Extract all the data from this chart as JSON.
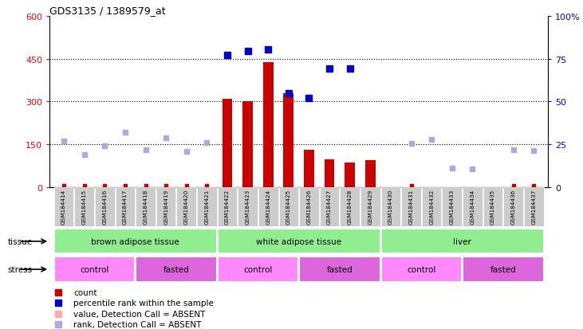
{
  "title": "GDS3135 / 1389579_at",
  "samples": [
    "GSM184414",
    "GSM184415",
    "GSM184416",
    "GSM184417",
    "GSM184418",
    "GSM184419",
    "GSM184420",
    "GSM184421",
    "GSM184422",
    "GSM184423",
    "GSM184424",
    "GSM184425",
    "GSM184426",
    "GSM184427",
    "GSM184428",
    "GSM184429",
    "GSM184430",
    "GSM184431",
    "GSM184432",
    "GSM184433",
    "GSM184434",
    "GSM184435",
    "GSM184436",
    "GSM184437"
  ],
  "count_present": [
    null,
    null,
    null,
    null,
    null,
    null,
    null,
    null,
    308,
    301,
    437,
    329,
    130,
    98,
    85,
    95,
    null,
    null,
    null,
    null,
    null,
    null,
    null,
    null
  ],
  "count_absent_marker": [
    true,
    true,
    true,
    true,
    true,
    true,
    true,
    true,
    false,
    false,
    false,
    false,
    false,
    false,
    false,
    false,
    false,
    true,
    false,
    false,
    false,
    false,
    true,
    true
  ],
  "pct_present": [
    null,
    null,
    null,
    null,
    null,
    null,
    null,
    null,
    77,
    79.5,
    80.5,
    55,
    52,
    69,
    69,
    null,
    null,
    null,
    null,
    null,
    null,
    null,
    null,
    null
  ],
  "pct_absent": [
    27,
    19,
    24,
    32,
    22,
    29,
    21,
    26,
    null,
    null,
    null,
    null,
    null,
    null,
    null,
    null,
    null,
    25.5,
    28,
    11,
    10.5,
    null,
    22,
    21.5
  ],
  "bar_color": "#CC0000",
  "scatter_present_color": "#0000CC",
  "scatter_absent_rank_color": "#AAAADD",
  "absent_marker_color": "#FFAAAA",
  "ylim_left": [
    0,
    600
  ],
  "ylim_right": [
    0,
    100
  ],
  "yticks_left": [
    0,
    150,
    300,
    450,
    600
  ],
  "yticks_right": [
    0,
    25,
    50,
    75,
    100
  ],
  "hlines": [
    150,
    300,
    450
  ],
  "tissue_groups": [
    {
      "label": "brown adipose tissue",
      "start": 0,
      "end": 7,
      "color": "#90EE90"
    },
    {
      "label": "white adipose tissue",
      "start": 8,
      "end": 15,
      "color": "#90EE90"
    },
    {
      "label": "liver",
      "start": 16,
      "end": 23,
      "color": "#90EE90"
    }
  ],
  "stress_groups": [
    {
      "label": "control",
      "start": 0,
      "end": 3,
      "color": "#FF88FF"
    },
    {
      "label": "fasted",
      "start": 4,
      "end": 7,
      "color": "#DD66DD"
    },
    {
      "label": "control",
      "start": 8,
      "end": 11,
      "color": "#FF88FF"
    },
    {
      "label": "fasted",
      "start": 12,
      "end": 15,
      "color": "#DD66DD"
    },
    {
      "label": "control",
      "start": 16,
      "end": 19,
      "color": "#FF88FF"
    },
    {
      "label": "fasted",
      "start": 20,
      "end": 23,
      "color": "#DD66DD"
    }
  ],
  "legend_items": [
    {
      "label": "count",
      "color": "#CC0000"
    },
    {
      "label": "percentile rank within the sample",
      "color": "#0000CC"
    },
    {
      "label": "value, Detection Call = ABSENT",
      "color": "#FFAAAA"
    },
    {
      "label": "rank, Detection Call = ABSENT",
      "color": "#AAAADD"
    }
  ]
}
